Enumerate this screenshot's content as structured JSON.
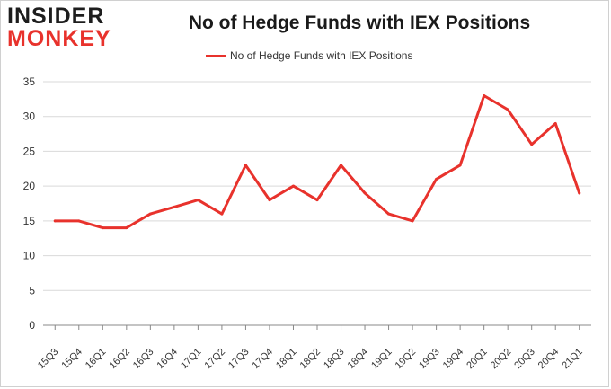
{
  "logo": {
    "line1": "INSIDER",
    "line2": "MONKEY"
  },
  "colors": {
    "series": "#e8322c",
    "grid": "#d9d9d9",
    "axis": "#888888"
  },
  "chart_data": {
    "type": "line",
    "title": "No of Hedge Funds with IEX Positions",
    "xlabel": "",
    "ylabel": "",
    "ylim": [
      0,
      35
    ],
    "yticks": [
      0,
      5,
      10,
      15,
      20,
      25,
      30,
      35
    ],
    "grid": true,
    "legend_placement": "top-center",
    "categories": [
      "15Q3",
      "15Q4",
      "16Q1",
      "16Q2",
      "16Q3",
      "16Q4",
      "17Q1",
      "17Q2",
      "17Q3",
      "17Q4",
      "18Q1",
      "18Q2",
      "18Q3",
      "18Q4",
      "19Q1",
      "19Q2",
      "19Q3",
      "19Q4",
      "20Q1",
      "20Q2",
      "20Q3",
      "20Q4",
      "21Q1"
    ],
    "series": [
      {
        "name": "No of Hedge Funds with IEX Positions",
        "values": [
          15,
          15,
          14,
          14,
          16,
          17,
          18,
          16,
          23,
          18,
          20,
          18,
          23,
          19,
          16,
          15,
          21,
          23,
          33,
          31,
          26,
          29,
          19
        ]
      }
    ]
  }
}
